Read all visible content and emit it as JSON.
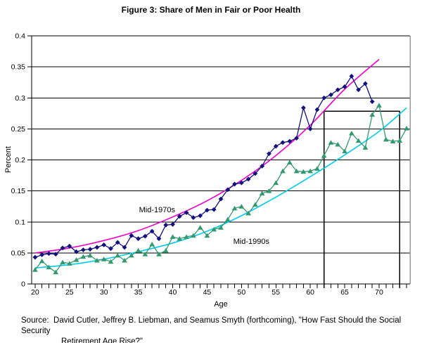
{
  "title": "Figure 3: Share of Men in Fair or Poor Health",
  "source": {
    "prefix": "Source:",
    "line1": "David Cutler, Jeffrey B. Liebman, and Seamus Smyth (forthcoming), \"How Fast Should the Social Security",
    "line2": "Retirement Age Rise?\""
  },
  "chart_data": {
    "type": "line",
    "title": "Figure 3: Share of Men in Fair or Poor Health",
    "xlabel": "Age",
    "ylabel": "Percent",
    "xlim": [
      19.5,
      74.5
    ],
    "ylim": [
      0,
      0.4
    ],
    "grid": "horizontal",
    "legend_position": "none",
    "x_tick_labels": [
      {
        "a": 20,
        "label": "20"
      },
      {
        "a": 25,
        "label": "25"
      },
      {
        "a": 30,
        "label": "30"
      },
      {
        "a": 35,
        "label": "35"
      },
      {
        "a": 40,
        "label": "40"
      },
      {
        "a": 45,
        "label": "45"
      },
      {
        "a": 50,
        "label": "50"
      },
      {
        "a": 55,
        "label": "55"
      },
      {
        "a": 60,
        "label": "60"
      },
      {
        "a": 65,
        "label": "65"
      },
      {
        "a": 70,
        "label": "70"
      }
    ],
    "x_minor_ticks": {
      "from": 20,
      "to": 74,
      "step": 1
    },
    "y_tick_labels": [
      {
        "v": 0,
        "label": "0"
      },
      {
        "v": 0.05,
        "label": "0.05"
      },
      {
        "v": 0.1,
        "label": "0.1"
      },
      {
        "v": 0.15,
        "label": "0.15"
      },
      {
        "v": 0.2,
        "label": "0.2"
      },
      {
        "v": 0.25,
        "label": "0.25"
      },
      {
        "v": 0.3,
        "label": "0.3"
      },
      {
        "v": 0.35,
        "label": "0.35"
      },
      {
        "v": 0.4,
        "label": "0.4"
      }
    ],
    "series": [
      {
        "name": "Mid-1970s",
        "marker": "diamond",
        "color": "#10107E",
        "age_start": 20,
        "values": [
          0.043,
          0.047,
          0.049,
          0.048,
          0.058,
          0.061,
          0.052,
          0.055,
          0.056,
          0.059,
          0.063,
          0.057,
          0.067,
          0.059,
          0.078,
          0.073,
          0.077,
          0.085,
          0.073,
          0.095,
          0.096,
          0.109,
          0.115,
          0.107,
          0.11,
          0.119,
          0.12,
          0.137,
          0.152,
          0.161,
          0.163,
          0.169,
          0.178,
          0.19,
          0.21,
          0.222,
          0.228,
          0.23,
          0.235,
          0.284,
          0.25,
          0.281,
          0.3,
          0.305,
          0.313,
          0.318,
          0.335,
          0.313,
          0.323,
          0.294
        ]
      },
      {
        "name": "Mid-1990s",
        "marker": "triangle",
        "color": "#339970",
        "age_start": 20,
        "values": [
          0.023,
          0.037,
          0.027,
          0.019,
          0.035,
          0.033,
          0.039,
          0.044,
          0.046,
          0.038,
          0.04,
          0.036,
          0.046,
          0.038,
          0.046,
          0.054,
          0.048,
          0.064,
          0.048,
          0.054,
          0.076,
          0.073,
          0.076,
          0.078,
          0.091,
          0.078,
          0.088,
          0.091,
          0.104,
          0.122,
          0.125,
          0.114,
          0.128,
          0.146,
          0.15,
          0.163,
          0.182,
          0.196,
          0.182,
          0.181,
          0.182,
          0.186,
          0.207,
          0.228,
          0.225,
          0.214,
          0.243,
          0.231,
          0.22,
          0.273,
          0.288,
          0.233,
          0.23,
          0.231,
          0.251
        ]
      }
    ],
    "trendlines": [
      {
        "name": "Mid-1970s trend",
        "color": "#EE00CC",
        "points": [
          [
            20,
            0.05
          ],
          [
            25,
            0.058
          ],
          [
            30,
            0.07
          ],
          [
            35,
            0.086
          ],
          [
            40,
            0.108
          ],
          [
            45,
            0.134
          ],
          [
            50,
            0.167
          ],
          [
            55,
            0.207
          ],
          [
            60,
            0.256
          ],
          [
            65,
            0.314
          ],
          [
            70,
            0.362
          ]
        ]
      },
      {
        "name": "Mid-1990s trend",
        "color": "#00CCEE",
        "points": [
          [
            20,
            0.026
          ],
          [
            25,
            0.031
          ],
          [
            30,
            0.04
          ],
          [
            35,
            0.052
          ],
          [
            40,
            0.066
          ],
          [
            45,
            0.085
          ],
          [
            50,
            0.11
          ],
          [
            55,
            0.14
          ],
          [
            60,
            0.173
          ],
          [
            65,
            0.208
          ],
          [
            70,
            0.246
          ],
          [
            74,
            0.284
          ]
        ]
      }
    ],
    "series_labels": [
      {
        "text": "Mid-1970s",
        "age": 35.1,
        "value": 0.1156
      },
      {
        "text": "Mid-1990s",
        "age": 48.8,
        "value": 0.0646
      }
    ],
    "annotation_box": {
      "age_start": 62,
      "age_end": 73,
      "value_top": 0.2785
    },
    "colors": {
      "grid": "#000000",
      "axis": "#000000",
      "plot_right_border": "#999999",
      "annotation": "#000000"
    }
  }
}
